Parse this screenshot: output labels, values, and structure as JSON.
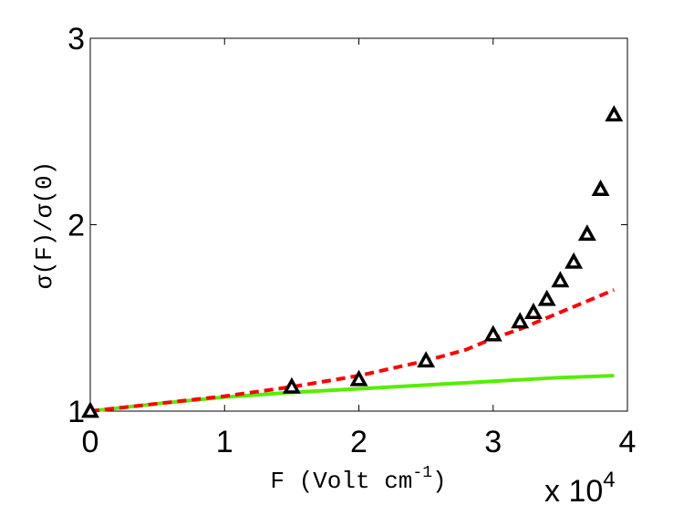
{
  "chart_data": {
    "type": "line",
    "title": "",
    "xlabel": "F (Volt  cm",
    "xlabel_superscript": "-1",
    "xlabel_close": ")",
    "ylabel": "σ(F)/σ(0)",
    "xlim": [
      0,
      40000
    ],
    "ylim": [
      1,
      3
    ],
    "x_ticks": [
      0,
      10000,
      20000,
      30000,
      40000
    ],
    "x_tick_labels": [
      "0",
      "1",
      "2",
      "3",
      "4"
    ],
    "y_ticks": [
      1,
      2,
      3
    ],
    "y_tick_labels": [
      "1",
      "2",
      "3"
    ],
    "x_scale_label": "x 10",
    "x_scale_exponent": "4",
    "grid": false,
    "series": [
      {
        "marker": "triangle",
        "color": "#000000",
        "x": [
          0,
          15000,
          20000,
          25000,
          30000,
          32000,
          33000,
          34000,
          35000,
          36000,
          37000,
          38000,
          39000
        ],
        "y": [
          1.0,
          1.13,
          1.17,
          1.27,
          1.41,
          1.48,
          1.53,
          1.6,
          1.7,
          1.8,
          1.95,
          2.19,
          2.59
        ]
      },
      {
        "style": "dashed",
        "color": "#ff0000",
        "x": [
          0,
          5000,
          10000,
          15000,
          20000,
          25000,
          28000,
          30000,
          32000,
          34000,
          36000,
          38000,
          39000
        ],
        "y": [
          1.0,
          1.04,
          1.08,
          1.13,
          1.19,
          1.27,
          1.33,
          1.39,
          1.44,
          1.5,
          1.56,
          1.62,
          1.65
        ]
      },
      {
        "style": "solid",
        "color": "#55ee00",
        "x": [
          0,
          5000,
          10000,
          15000,
          20000,
          25000,
          30000,
          35000,
          39000
        ],
        "y": [
          1.0,
          1.04,
          1.075,
          1.1,
          1.12,
          1.14,
          1.16,
          1.18,
          1.19
        ]
      }
    ]
  }
}
